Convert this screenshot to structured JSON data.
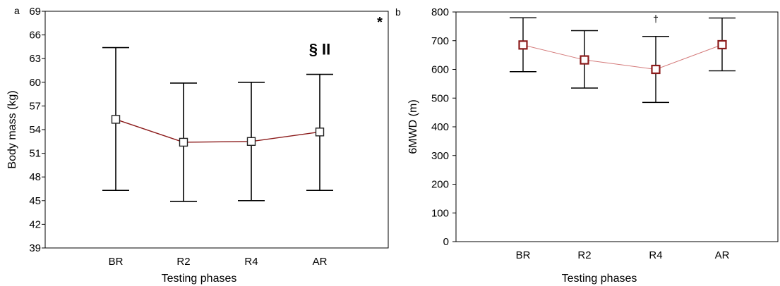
{
  "chart_data": [
    {
      "type": "line",
      "panel_label": "a",
      "xlabel": "Testing phases",
      "ylabel": "Body mass (kg)",
      "categories": [
        "BR",
        "R2",
        "R4",
        "AR"
      ],
      "ylim": [
        39,
        69
      ],
      "yticks": [
        39,
        42,
        45,
        48,
        51,
        54,
        57,
        60,
        63,
        66,
        69
      ],
      "series": [
        {
          "values": [
            55.3,
            52.4,
            52.5,
            53.7
          ],
          "error_low": [
            46.3,
            44.9,
            45.0,
            46.3
          ],
          "error_high": [
            64.4,
            59.9,
            60.0,
            61.0
          ]
        }
      ],
      "annotations": [
        {
          "text": "§ II",
          "category": "AR",
          "y": 63.5
        },
        {
          "text": "*",
          "position": "top-right"
        }
      ],
      "line_color": "#8b1a1a",
      "marker_edge_color": "#222222",
      "grid": false
    },
    {
      "type": "line",
      "panel_label": "b",
      "xlabel": "Testing phases",
      "ylabel": "6MWD (m)",
      "categories": [
        "BR",
        "R2",
        "R4",
        "AR"
      ],
      "ylim": [
        0,
        800
      ],
      "yticks": [
        0,
        100,
        200,
        300,
        400,
        500,
        600,
        700,
        800
      ],
      "series": [
        {
          "values": [
            685,
            633,
            600,
            686
          ],
          "error_low": [
            592,
            535,
            485,
            595
          ],
          "error_high": [
            780,
            735,
            715,
            779
          ]
        }
      ],
      "annotations": [
        {
          "text": "†",
          "category": "R4",
          "y": 765
        }
      ],
      "line_color": "#d47a7a",
      "marker_edge_color": "#8b1a1a",
      "grid": false
    }
  ]
}
